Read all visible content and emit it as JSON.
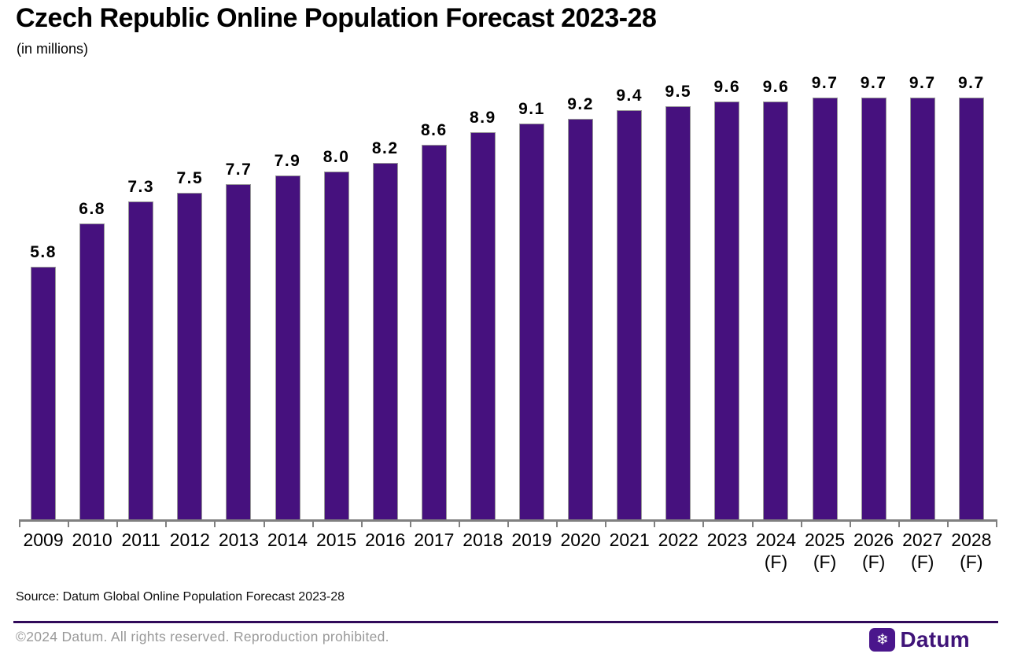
{
  "header": {
    "title": "Czech Republic Online Population Forecast 2023-28",
    "subtitle": "(in millions)"
  },
  "chart_data": {
    "type": "bar",
    "title": "Czech Republic Online Population Forecast 2023-28",
    "subtitle": "(in millions)",
    "categories": [
      "2009",
      "2010",
      "2011",
      "2012",
      "2013",
      "2014",
      "2015",
      "2016",
      "2017",
      "2018",
      "2019",
      "2020",
      "2021",
      "2022",
      "2023",
      "2024 (F)",
      "2025 (F)",
      "2026 (F)",
      "2027 (F)",
      "2028 (F)"
    ],
    "category_line1": [
      "2009",
      "2010",
      "2011",
      "2012",
      "2013",
      "2014",
      "2015",
      "2016",
      "2017",
      "2018",
      "2019",
      "2020",
      "2021",
      "2022",
      "2023",
      "2024",
      "2025",
      "2026",
      "2027",
      "2028"
    ],
    "category_line2": [
      "",
      "",
      "",
      "",
      "",
      "",
      "",
      "",
      "",
      "",
      "",
      "",
      "",
      "",
      "",
      "(F)",
      "(F)",
      "(F)",
      "(F)",
      "(F)"
    ],
    "values": [
      5.8,
      6.8,
      7.3,
      7.5,
      7.7,
      7.9,
      8.0,
      8.2,
      8.6,
      8.9,
      9.1,
      9.2,
      9.4,
      9.5,
      9.6,
      9.6,
      9.7,
      9.7,
      9.7,
      9.7
    ],
    "value_labels": [
      "5.8",
      "6.8",
      "7.3",
      "7.5",
      "7.7",
      "7.9",
      "8.0",
      "8.2",
      "8.6",
      "8.9",
      "9.1",
      "9.2",
      "9.4",
      "9.5",
      "9.6",
      "9.6",
      "9.7",
      "9.7",
      "9.7",
      "9.7"
    ],
    "xlabel": "",
    "ylabel": "",
    "ylim": [
      0,
      10.3
    ],
    "grid": false,
    "legend": "none",
    "bar_color": "#46117e",
    "bar_border_color": "#999999",
    "axis_color": "#808080"
  },
  "footer": {
    "source": "Source: Datum Global Online Population Forecast 2023-28",
    "copyright": "©2024 Datum. All rights reserved. Reproduction prohibited.",
    "divider_color": "#310a5a",
    "brand": {
      "name": "Datum",
      "icon": "snowflake-icon",
      "icon_glyph": "❄",
      "color": "#3f1378"
    }
  }
}
